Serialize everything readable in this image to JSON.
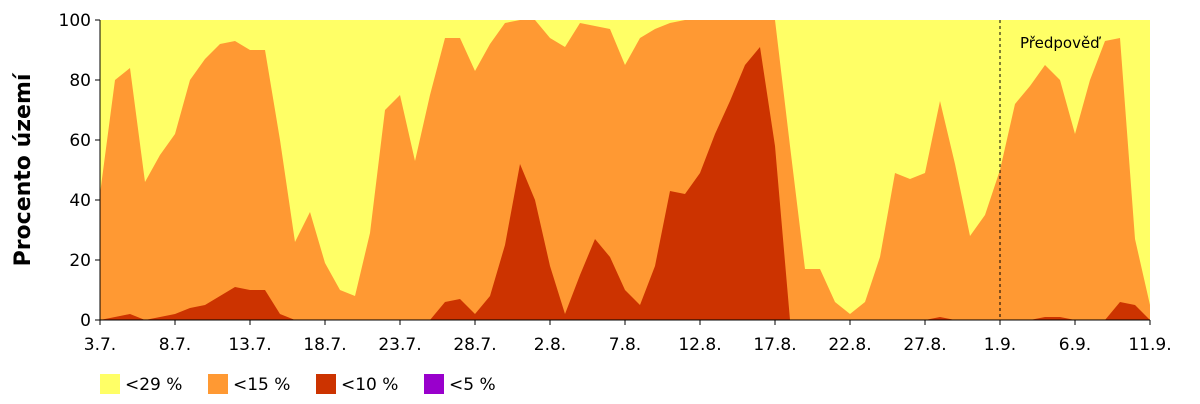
{
  "chart_data": {
    "type": "area",
    "ylabel": "Procento území",
    "annotation": "Předpověď",
    "annotation_at": 60,
    "categories": [
      "3.7.",
      null,
      null,
      null,
      null,
      "8.7.",
      null,
      null,
      null,
      null,
      "13.7.",
      null,
      null,
      null,
      null,
      "18.7.",
      null,
      null,
      null,
      null,
      "23.7.",
      null,
      null,
      null,
      null,
      "28.7.",
      null,
      null,
      null,
      null,
      "2.8.",
      null,
      null,
      null,
      null,
      "7.8.",
      null,
      null,
      null,
      null,
      "12.8.",
      null,
      null,
      null,
      null,
      "17.8.",
      null,
      null,
      null,
      null,
      "22.8.",
      null,
      null,
      null,
      null,
      "27.8.",
      null,
      null,
      null,
      null,
      "1.9.",
      null,
      null,
      null,
      null,
      "6.9.",
      null,
      null,
      null,
      null,
      "11.9."
    ],
    "ylim": [
      0,
      100
    ],
    "yticks": [
      0,
      20,
      40,
      60,
      80,
      100
    ],
    "series": [
      {
        "name": "<29 %",
        "color": "#ffff66",
        "values": [
          100,
          100,
          100,
          100,
          100,
          100,
          100,
          100,
          100,
          100,
          100,
          100,
          100,
          100,
          100,
          100,
          100,
          100,
          100,
          100,
          100,
          100,
          100,
          100,
          100,
          100,
          100,
          100,
          100,
          100,
          100,
          100,
          100,
          100,
          100,
          100,
          100,
          100,
          100,
          100,
          100,
          100,
          100,
          100,
          100,
          100,
          100,
          100,
          100,
          100,
          100,
          100,
          100,
          100,
          100,
          100,
          100,
          100,
          100,
          100,
          100,
          100,
          100,
          100,
          100,
          100,
          100,
          100,
          100,
          100,
          100
        ]
      },
      {
        "name": "<15 %",
        "color": "#ff9933",
        "values": [
          42,
          80,
          84,
          46,
          55,
          62,
          80,
          87,
          92,
          93,
          90,
          90,
          60,
          26,
          36,
          19,
          10,
          8,
          29,
          70,
          75,
          53,
          75,
          94,
          94,
          83,
          92,
          99,
          100,
          100,
          94,
          91,
          99,
          98,
          97,
          85,
          94,
          97,
          99,
          100,
          100,
          100,
          100,
          100,
          100,
          100,
          58,
          17,
          17,
          6,
          2,
          6,
          21,
          49,
          47,
          49,
          73,
          52,
          28,
          35,
          50,
          72,
          78,
          85,
          80,
          62,
          80,
          93,
          94,
          27,
          5
        ]
      },
      {
        "name": "<10 %",
        "color": "#cc3300",
        "values": [
          0,
          1,
          2,
          0,
          1,
          2,
          4,
          5,
          8,
          11,
          10,
          10,
          2,
          0,
          0,
          0,
          0,
          0,
          0,
          0,
          0,
          0,
          0,
          6,
          7,
          2,
          8,
          25,
          52,
          40,
          18,
          2,
          15,
          27,
          21,
          10,
          5,
          18,
          43,
          42,
          49,
          62,
          73,
          85,
          91,
          58,
          0,
          0,
          0,
          0,
          0,
          0,
          0,
          0,
          0,
          0,
          1,
          0,
          0,
          0,
          0,
          0,
          0,
          1,
          1,
          0,
          0,
          0,
          6,
          5,
          0
        ]
      },
      {
        "name": "<5 %",
        "color": "#9900cc",
        "values": [
          0,
          0,
          0,
          0,
          0,
          0,
          0,
          0,
          0,
          0,
          0,
          0,
          0,
          0,
          0,
          0,
          0,
          0,
          0,
          0,
          0,
          0,
          0,
          0,
          0,
          0,
          0,
          0,
          0,
          0,
          0,
          0,
          0,
          0,
          0,
          0,
          0,
          0,
          0,
          0,
          0,
          0,
          0,
          0,
          0,
          0,
          0,
          0,
          0,
          0,
          0,
          0,
          0,
          0,
          0,
          0,
          0,
          0,
          0,
          0,
          0,
          0,
          0,
          0,
          0,
          0,
          0,
          0,
          0,
          0,
          0
        ]
      }
    ]
  }
}
